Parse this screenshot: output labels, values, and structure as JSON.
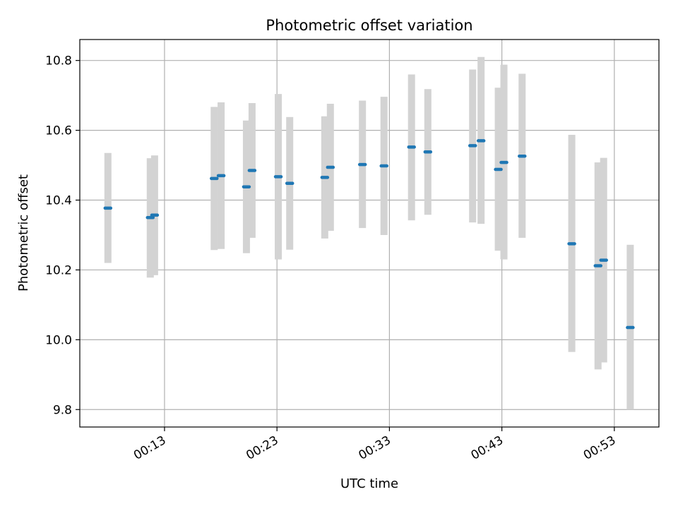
{
  "figure": {
    "title": "Photometric offset variation",
    "xlabel": "UTC time",
    "ylabel": "Photometric offset"
  },
  "chart_data": {
    "type": "scatter",
    "title": "Photometric offset variation",
    "xlabel": "UTC time",
    "ylabel": "Photometric offset",
    "x_unit": "minutes",
    "xlim": [
      "00:05:28",
      "00:56:58"
    ],
    "ylim": [
      9.75,
      10.86
    ],
    "xticks": [
      "00:13",
      "00:23",
      "00:33",
      "00:43",
      "00:53"
    ],
    "yticks": [
      9.8,
      10.0,
      10.2,
      10.4,
      10.6,
      10.8
    ],
    "grid": true,
    "colors": {
      "point": "#1f77b4",
      "errorbar": "#d3d3d3",
      "grid": "#b0b0b0"
    },
    "points": [
      {
        "x": "00:07:58",
        "y": 10.377,
        "yerr_low": 10.22,
        "yerr_high": 10.535
      },
      {
        "x": "00:11:44",
        "y": 10.35,
        "yerr_low": 10.178,
        "yerr_high": 10.52
      },
      {
        "x": "00:12:07",
        "y": 10.357,
        "yerr_low": 10.185,
        "yerr_high": 10.528
      },
      {
        "x": "00:17:25",
        "y": 10.462,
        "yerr_low": 10.257,
        "yerr_high": 10.667
      },
      {
        "x": "00:18:02",
        "y": 10.47,
        "yerr_low": 10.26,
        "yerr_high": 10.68
      },
      {
        "x": "00:20:17",
        "y": 10.438,
        "yerr_low": 10.248,
        "yerr_high": 10.628
      },
      {
        "x": "00:20:47",
        "y": 10.485,
        "yerr_low": 10.292,
        "yerr_high": 10.678
      },
      {
        "x": "00:23:07",
        "y": 10.467,
        "yerr_low": 10.23,
        "yerr_high": 10.704
      },
      {
        "x": "00:24:08",
        "y": 10.448,
        "yerr_low": 10.258,
        "yerr_high": 10.638
      },
      {
        "x": "00:27:15",
        "y": 10.465,
        "yerr_low": 10.29,
        "yerr_high": 10.64
      },
      {
        "x": "00:27:45",
        "y": 10.494,
        "yerr_low": 10.312,
        "yerr_high": 10.676
      },
      {
        "x": "00:30:36",
        "y": 10.502,
        "yerr_low": 10.32,
        "yerr_high": 10.685
      },
      {
        "x": "00:32:31",
        "y": 10.498,
        "yerr_low": 10.3,
        "yerr_high": 10.696
      },
      {
        "x": "00:34:58",
        "y": 10.552,
        "yerr_low": 10.342,
        "yerr_high": 10.76
      },
      {
        "x": "00:36:25",
        "y": 10.538,
        "yerr_low": 10.358,
        "yerr_high": 10.718
      },
      {
        "x": "00:40:24",
        "y": 10.556,
        "yerr_low": 10.336,
        "yerr_high": 10.774
      },
      {
        "x": "00:41:09",
        "y": 10.57,
        "yerr_low": 10.332,
        "yerr_high": 10.81
      },
      {
        "x": "00:42:41",
        "y": 10.488,
        "yerr_low": 10.255,
        "yerr_high": 10.722
      },
      {
        "x": "00:43:11",
        "y": 10.508,
        "yerr_low": 10.23,
        "yerr_high": 10.788
      },
      {
        "x": "00:44:48",
        "y": 10.526,
        "yerr_low": 10.292,
        "yerr_high": 10.762
      },
      {
        "x": "00:49:13",
        "y": 10.275,
        "yerr_low": 9.965,
        "yerr_high": 10.587
      },
      {
        "x": "00:51:33",
        "y": 10.212,
        "yerr_low": 9.915,
        "yerr_high": 10.508
      },
      {
        "x": "00:52:03",
        "y": 10.228,
        "yerr_low": 9.935,
        "yerr_high": 10.521
      },
      {
        "x": "00:54:25",
        "y": 10.035,
        "yerr_low": 9.8,
        "yerr_high": 10.272
      }
    ]
  }
}
